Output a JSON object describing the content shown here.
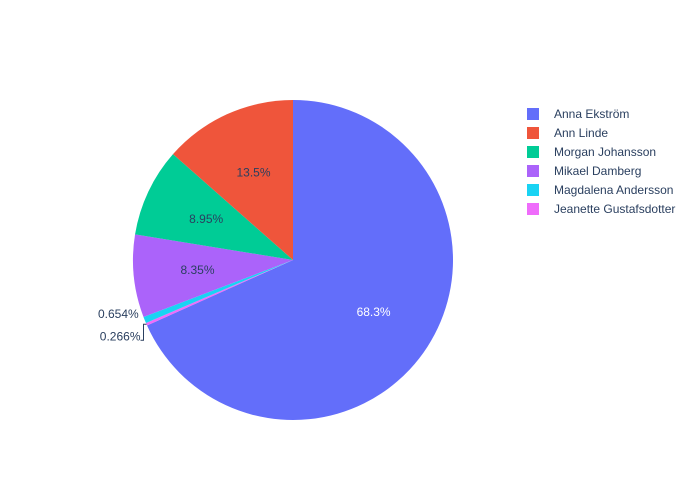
{
  "chart_data": {
    "type": "pie",
    "sort": "descending",
    "direction": "clockwise",
    "start": "12 o'clock",
    "legend_position": "right",
    "slices": [
      {
        "label": "Anna Ekström",
        "percent": 68.3,
        "percent_label": "68.3%",
        "color": "#636efa",
        "label_color": "#ffffff",
        "label_position": "inside"
      },
      {
        "label": "Jeanette Gustafsdotter",
        "percent": 0.266,
        "percent_label": "0.266%",
        "color": "#ef6cfb",
        "label_color": "#2a3f5f",
        "label_position": "outside"
      },
      {
        "label": "Magdalena Andersson",
        "percent": 0.654,
        "percent_label": "0.654%",
        "color": "#19d3f3",
        "label_color": "#2a3f5f",
        "label_position": "outside"
      },
      {
        "label": "Mikael Damberg",
        "percent": 8.35,
        "percent_label": "8.35%",
        "color": "#ab63fa",
        "label_color": "#2a3f5f",
        "label_position": "inside"
      },
      {
        "label": "Morgan Johansson",
        "percent": 8.95,
        "percent_label": "8.95%",
        "color": "#00cc96",
        "label_color": "#2a3f5f",
        "label_position": "inside"
      },
      {
        "label": "Ann Linde",
        "percent": 13.5,
        "percent_label": "13.5%",
        "color": "#ef553b",
        "label_color": "#2a3f5f",
        "label_position": "inside"
      }
    ],
    "legend": [
      {
        "label": "Anna Ekström",
        "color": "#636efa"
      },
      {
        "label": "Ann Linde",
        "color": "#ef553b"
      },
      {
        "label": "Morgan Johansson",
        "color": "#00cc96"
      },
      {
        "label": "Mikael Damberg",
        "color": "#ab63fa"
      },
      {
        "label": "Magdalena Andersson",
        "color": "#19d3f3"
      },
      {
        "label": "Jeanette Gustafsdotter",
        "color": "#ef6cfb"
      }
    ]
  }
}
